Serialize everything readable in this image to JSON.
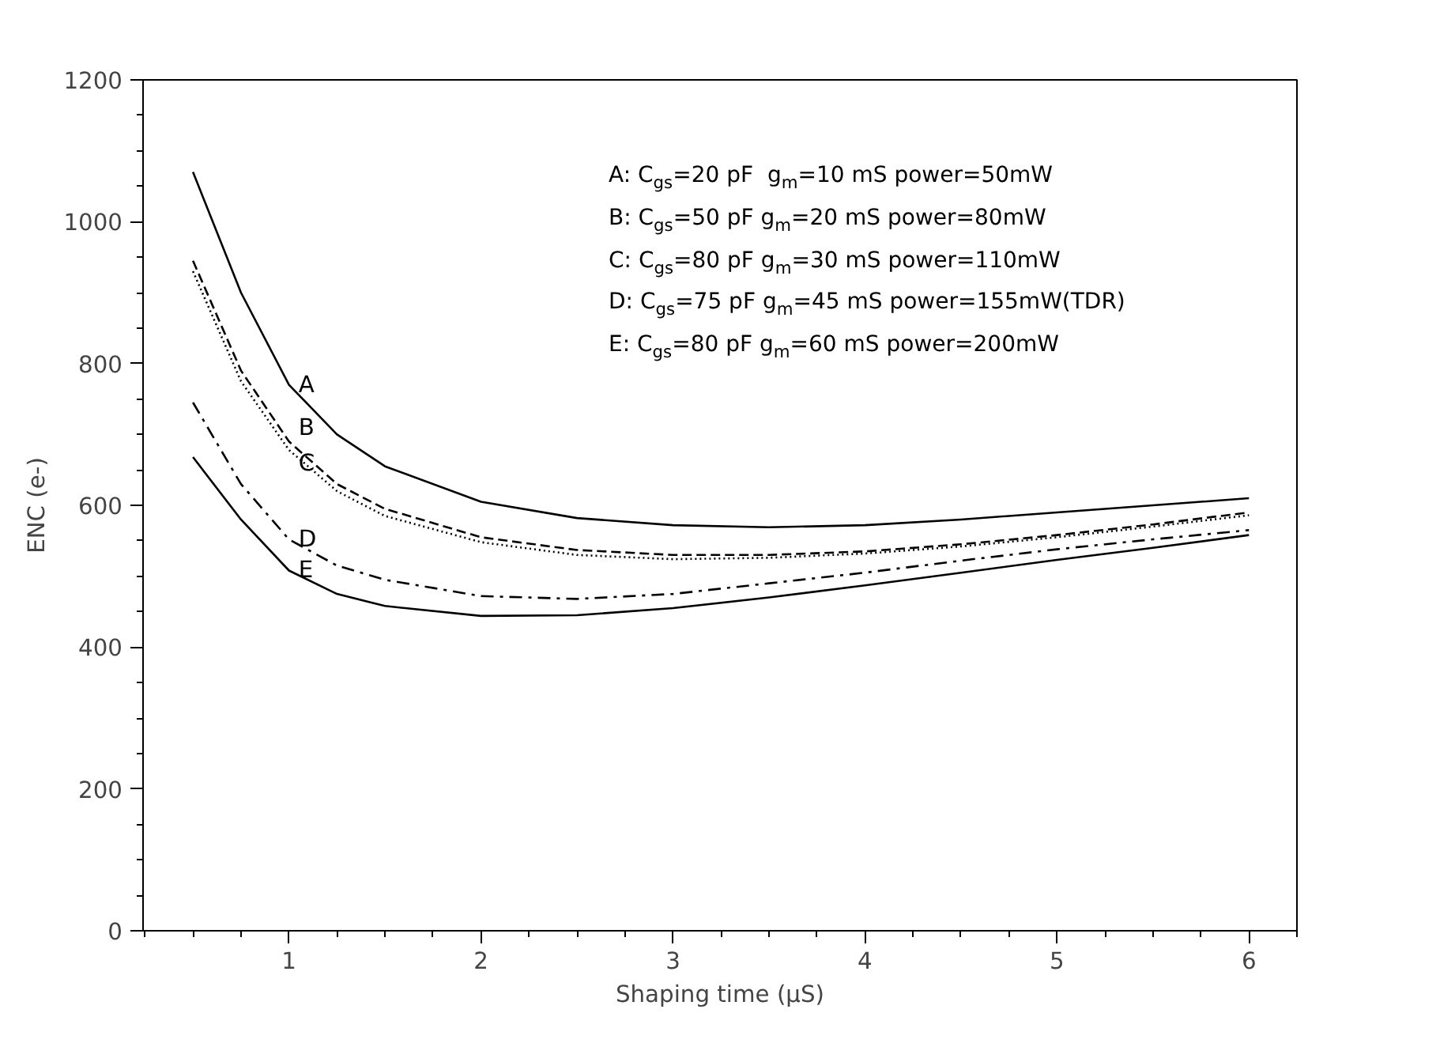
{
  "chart_data": {
    "type": "line",
    "xlabel": "Shaping time (μS)",
    "ylabel": "ENC (e-)",
    "x": [
      0.5,
      0.75,
      1,
      1.25,
      1.5,
      2,
      2.5,
      3,
      3.5,
      4,
      4.5,
      5,
      5.5,
      6
    ],
    "xlim": [
      0.24,
      6.25
    ],
    "xticks": [
      1,
      2,
      3,
      4,
      5,
      6
    ],
    "ylim": [
      0,
      1200
    ],
    "yticks": [
      0,
      200,
      400,
      600,
      800,
      1000,
      1200
    ],
    "grid": false,
    "legend": false,
    "series": [
      {
        "name": "A",
        "color": "#000000",
        "line_style": "solid",
        "values": [
          1070,
          900,
          770,
          700,
          655,
          605,
          582,
          572,
          569,
          572,
          580,
          590,
          600,
          610
        ]
      },
      {
        "name": "B",
        "color": "#000000",
        "line_style": "dashed",
        "values": [
          945,
          790,
          690,
          630,
          595,
          555,
          537,
          530,
          530,
          535,
          545,
          558,
          573,
          590
        ]
      },
      {
        "name": "C",
        "color": "#000000",
        "line_style": "dotted",
        "values": [
          930,
          775,
          678,
          620,
          585,
          548,
          530,
          524,
          526,
          532,
          542,
          555,
          570,
          586
        ]
      },
      {
        "name": "D",
        "color": "#000000",
        "line_style": "dashdot",
        "values": [
          745,
          630,
          552,
          515,
          495,
          472,
          468,
          475,
          490,
          505,
          522,
          538,
          552,
          565
        ]
      },
      {
        "name": "E",
        "color": "#000000",
        "line_style": "solid",
        "values": [
          668,
          580,
          508,
          475,
          458,
          444,
          445,
          455,
          470,
          487,
          505,
          523,
          540,
          558
        ]
      }
    ],
    "annotations": [
      "A: C$_{gs}$=20 pF  g$_{m}$=10 mS power=50mW",
      "B: C$_{gs}$=50 pF g$_{m}$=20 mS power=80mW",
      "C: C$_{gs}$=80 pF g$_{m}$=30 mS power=110mW",
      "D: C$_{gs}$=75 pF g$_{m}$=45 mS power=155mW(TDR)",
      "E: C$_{gs}$=80 pF g$_{m}$=60 mS power=200mW"
    ]
  }
}
